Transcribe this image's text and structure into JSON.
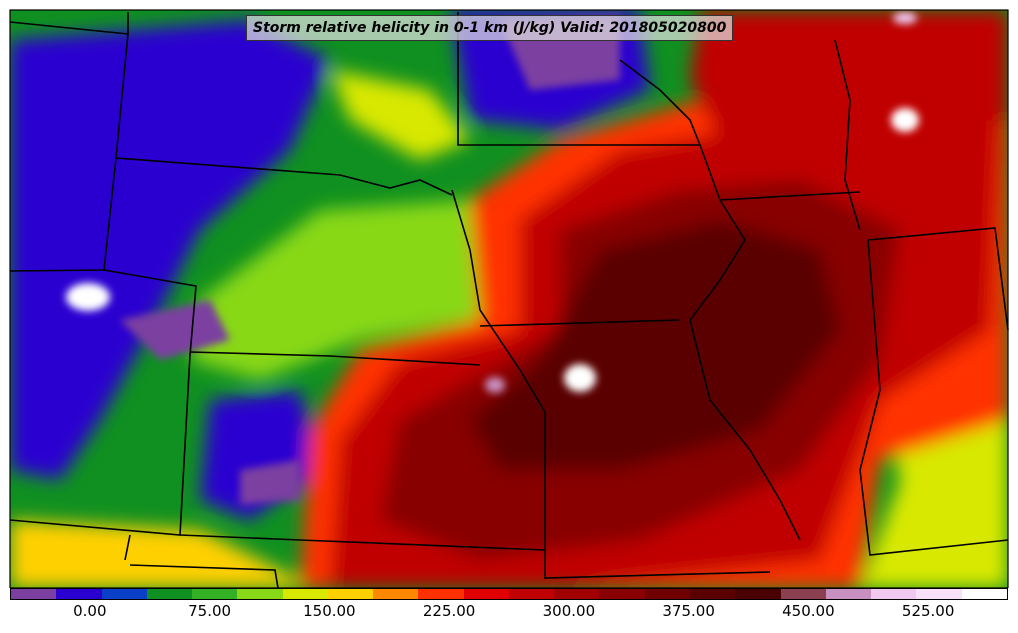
{
  "title": "Storm relative helicity in 0-1 km (J/kg) Valid: 201805020800",
  "colorbar": {
    "colors": [
      "#7b3fa0",
      "#2a00d0",
      "#0a40c8",
      "#109020",
      "#34b024",
      "#88d818",
      "#d8e800",
      "#ffd000",
      "#ff8800",
      "#ff3000",
      "#e00000",
      "#c00000",
      "#a00000",
      "#880000",
      "#700000",
      "#5a0000",
      "#4a0000",
      "#8a4050",
      "#c890c0",
      "#f0c8f0",
      "#f8e0f8",
      "#ffffff"
    ],
    "ticks": [
      "0.00",
      "75.00",
      "150.00",
      "225.00",
      "300.00",
      "375.00",
      "450.00",
      "525.00"
    ],
    "tick_values": [
      0,
      75,
      150,
      225,
      300,
      375,
      450,
      525
    ],
    "range": [
      -50,
      575
    ]
  },
  "map": {
    "region": "Central United States",
    "shading": {
      "low_purple": "#7b3fa0",
      "blue": "#2a00d0",
      "green": "#109020",
      "lime": "#88d818",
      "yellow": "#ffd000",
      "orange": "#ff8800",
      "red": "#e00000",
      "dark_red": "#880000",
      "maroon": "#5a0000",
      "pink": "#c890c0",
      "white": "#ffffff"
    }
  }
}
